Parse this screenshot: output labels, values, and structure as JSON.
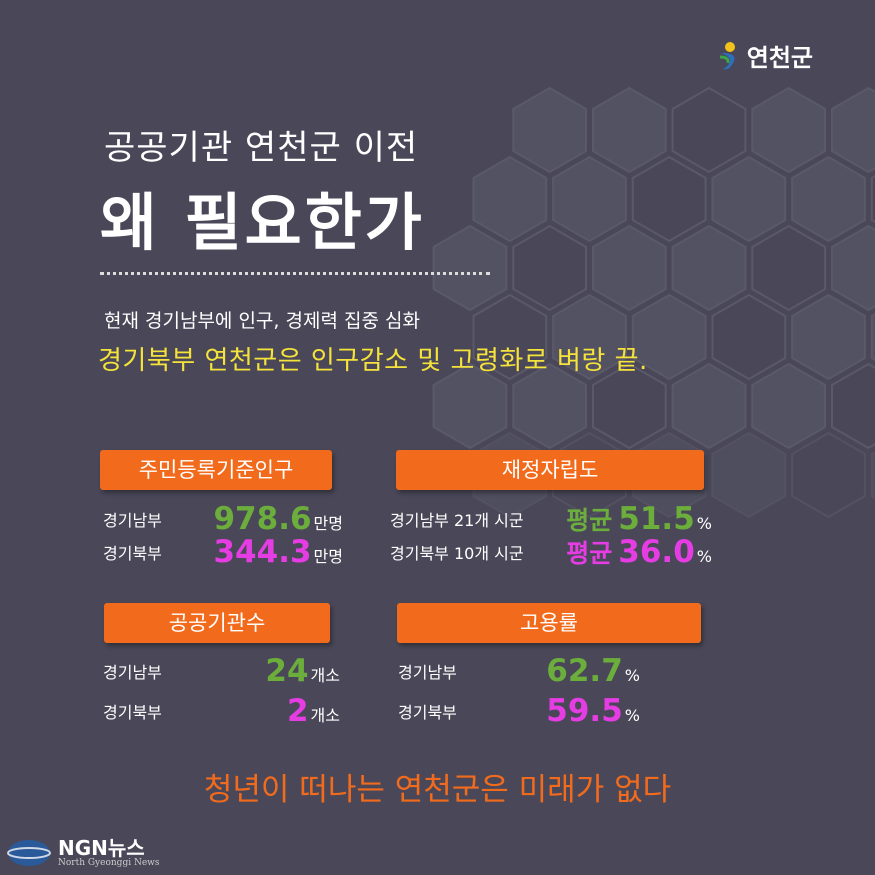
{
  "header": {
    "logo": "연천군",
    "title_line1": "공공기관 연천군 이전",
    "title_line2": "왜 필요한가",
    "subtitle": "현재 경기남부에 인구, 경제력 집중 심화",
    "highlight": "경기북부 연천군은 인구감소 및 고령화로 벼랑 끝."
  },
  "sections": [
    {
      "title": "주민등록기준인구",
      "rows": [
        {
          "label": "경기남부",
          "value": "978.6",
          "unit": "만명"
        },
        {
          "label": "경기북부",
          "value": "344.3",
          "unit": "만명"
        }
      ]
    },
    {
      "title": "재정자립도",
      "rows": [
        {
          "label": "경기남부 21개 시군",
          "prefix": "평균",
          "value": "51.5",
          "unit": "%"
        },
        {
          "label": "경기북부 10개 시군",
          "prefix": "평균",
          "value": "36.0",
          "unit": "%"
        }
      ]
    },
    {
      "title": "공공기관수",
      "rows": [
        {
          "label": "경기남부",
          "value": "24",
          "unit": "개소"
        },
        {
          "label": "경기북부",
          "value": "2",
          "unit": "개소"
        }
      ]
    },
    {
      "title": "고용률",
      "rows": [
        {
          "label": "경기남부",
          "value": "62.7",
          "unit": "%"
        },
        {
          "label": "경기북부",
          "value": "59.5",
          "unit": "%"
        }
      ]
    }
  ],
  "footer": {
    "message": "청년이 떠나는 연천군은 미래가 없다",
    "brand": "NGN뉴스",
    "brand_sub": "North Gyeonggi News"
  }
}
